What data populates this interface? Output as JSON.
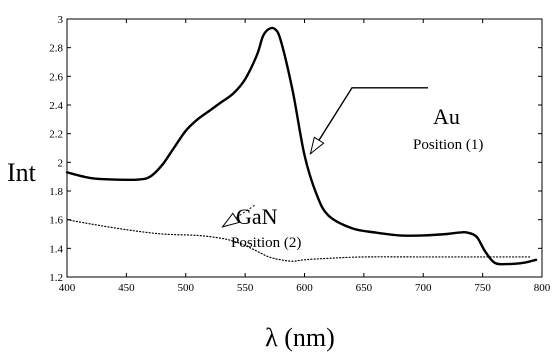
{
  "chart_data": {
    "type": "line",
    "title": "",
    "xlabel": "λ (nm)",
    "ylabel": "Int",
    "xlim": [
      400,
      800
    ],
    "ylim": [
      1.2,
      3.0
    ],
    "grid": false,
    "legend": "none",
    "x_ticks": [
      "400",
      "450",
      "500",
      "550",
      "600",
      "650",
      "700",
      "750",
      "800"
    ],
    "y_ticks": [
      "1.2",
      "1.4",
      "1.6",
      "1.8",
      "2",
      "2.2",
      "2.4",
      "2.6",
      "2.8",
      "3"
    ],
    "series": [
      {
        "style": "solid",
        "color": "#000000",
        "x": [
          400,
          420,
          440,
          460,
          470,
          480,
          490,
          500,
          510,
          520,
          530,
          540,
          550,
          560,
          565,
          570,
          575,
          580,
          590,
          600,
          610,
          620,
          640,
          660,
          680,
          700,
          720,
          730,
          737,
          745,
          752,
          760,
          770,
          785,
          795
        ],
        "y": [
          1.93,
          1.89,
          1.88,
          1.88,
          1.9,
          1.98,
          2.1,
          2.22,
          2.3,
          2.36,
          2.42,
          2.48,
          2.58,
          2.75,
          2.88,
          2.93,
          2.93,
          2.85,
          2.5,
          2.05,
          1.78,
          1.63,
          1.54,
          1.51,
          1.49,
          1.49,
          1.5,
          1.51,
          1.51,
          1.48,
          1.38,
          1.3,
          1.29,
          1.3,
          1.32
        ]
      },
      {
        "style": "dotted",
        "color": "#000000",
        "x": [
          400,
          420,
          450,
          480,
          510,
          530,
          540,
          550,
          560,
          570,
          580,
          590,
          600,
          620,
          650,
          700,
          750,
          790
        ],
        "y": [
          1.6,
          1.57,
          1.53,
          1.5,
          1.49,
          1.47,
          1.45,
          1.42,
          1.38,
          1.34,
          1.32,
          1.31,
          1.32,
          1.33,
          1.34,
          1.34,
          1.34,
          1.34
        ]
      }
    ],
    "annotations": [
      {
        "id": "au",
        "label": "Au",
        "sublabel": "Position (1)",
        "arrow_to_x": 605,
        "arrow_to_y": 2.06,
        "elbow_x": 640,
        "elbow_y": 2.52
      },
      {
        "id": "gan",
        "label": "GaN",
        "sublabel": "Position (2)",
        "arrow_to_x": 531,
        "arrow_to_y": 1.55,
        "elbow_x": 558,
        "elbow_y": 1.7
      }
    ]
  }
}
